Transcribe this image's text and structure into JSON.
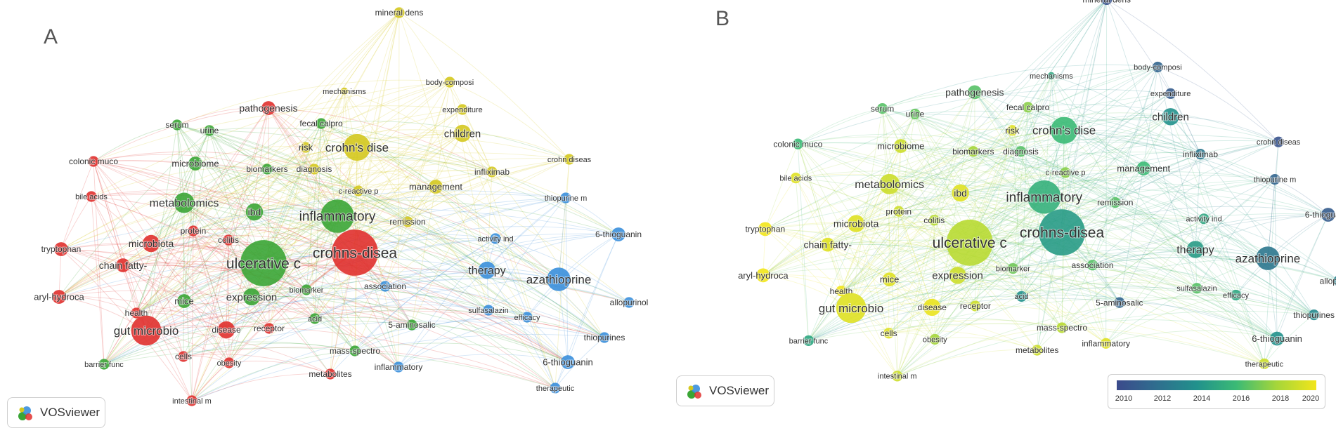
{
  "panels": [
    {
      "letter": "A",
      "logo_text": "VOSviewer"
    },
    {
      "letter": "B",
      "logo_text": "VOSviewer"
    }
  ],
  "legend": {
    "ticks": [
      "2010",
      "2012",
      "2014",
      "2016",
      "2018",
      "2020"
    ]
  },
  "cluster_colors": {
    "red": "#e0302e",
    "green": "#3aa535",
    "blue": "#3a8fdc",
    "yellow": "#d4c81e"
  },
  "nodes": [
    {
      "id": "mineral-dens",
      "label": "mineral dens",
      "cluster": "yellow",
      "weight": 2,
      "year": 2010.5,
      "fontsize": 12
    },
    {
      "id": "mechanisms",
      "label": "mechanisms",
      "cluster": "yellow",
      "weight": 1,
      "year": 2015.0,
      "fontsize": 11
    },
    {
      "id": "body-composi",
      "label": "body-composi",
      "cluster": "yellow",
      "weight": 2,
      "year": 2011.5,
      "fontsize": 11
    },
    {
      "id": "expenditure",
      "label": "expenditure",
      "cluster": "yellow",
      "weight": 2,
      "year": 2011.0,
      "fontsize": 11
    },
    {
      "id": "pathogenesis",
      "label": "pathogenesis",
      "cluster": "red",
      "weight": 3,
      "year": 2016.5,
      "fontsize": 14
    },
    {
      "id": "serum",
      "label": "serum",
      "cluster": "green",
      "weight": 2,
      "year": 2016.5,
      "fontsize": 12
    },
    {
      "id": "urine",
      "label": "urine",
      "cluster": "green",
      "weight": 2,
      "year": 2016.8,
      "fontsize": 12
    },
    {
      "id": "fecal-calpro",
      "label": "fecal calpro",
      "cluster": "green",
      "weight": 2,
      "year": 2017.5,
      "fontsize": 12
    },
    {
      "id": "crohns-dise",
      "label": "crohn's dise",
      "cluster": "yellow",
      "weight": 7,
      "year": 2016.0,
      "fontsize": 17
    },
    {
      "id": "children",
      "label": "children",
      "cluster": "yellow",
      "weight": 4,
      "year": 2014.0,
      "fontsize": 15
    },
    {
      "id": "risk",
      "label": "risk",
      "cluster": "yellow",
      "weight": 2,
      "year": 2019.5,
      "fontsize": 13
    },
    {
      "id": "colonic-muco",
      "label": "colonic muco",
      "cluster": "red",
      "weight": 2,
      "year": 2016.0,
      "fontsize": 12
    },
    {
      "id": "microbiome",
      "label": "microbiome",
      "cluster": "green",
      "weight": 3,
      "year": 2019.0,
      "fontsize": 13
    },
    {
      "id": "biomarkers",
      "label": "biomarkers",
      "cluster": "green",
      "weight": 2,
      "year": 2018.0,
      "fontsize": 12
    },
    {
      "id": "diagnosis",
      "label": "diagnosis",
      "cluster": "yellow",
      "weight": 2,
      "year": 2016.5,
      "fontsize": 12
    },
    {
      "id": "infliximab",
      "label": "infliximab",
      "cluster": "yellow",
      "weight": 2,
      "year": 2012.5,
      "fontsize": 12
    },
    {
      "id": "crohn-diseas",
      "label": "crohn diseas",
      "cluster": "yellow",
      "weight": 2,
      "year": 2010.5,
      "fontsize": 11
    },
    {
      "id": "bile-acids",
      "label": "bile acids",
      "cluster": "red",
      "weight": 2,
      "year": 2019.5,
      "fontsize": 11
    },
    {
      "id": "c-reactive-p",
      "label": "c-reactive p",
      "cluster": "yellow",
      "weight": 2,
      "year": 2017.5,
      "fontsize": 11
    },
    {
      "id": "management",
      "label": "management",
      "cluster": "yellow",
      "weight": 3,
      "year": 2016.0,
      "fontsize": 13
    },
    {
      "id": "metabolomics",
      "label": "metabolomics",
      "cluster": "green",
      "weight": 5,
      "year": 2019.0,
      "fontsize": 16
    },
    {
      "id": "ibd",
      "label": "ibd",
      "cluster": "green",
      "weight": 4,
      "year": 2019.5,
      "fontsize": 14
    },
    {
      "id": "inflammatory",
      "label": "inflammatory",
      "cluster": "green",
      "weight": 9,
      "year": 2015.5,
      "fontsize": 19
    },
    {
      "id": "thiopurine-m",
      "label": "thiopurine m",
      "cluster": "blue",
      "weight": 2,
      "year": 2011.5,
      "fontsize": 11
    },
    {
      "id": "remission",
      "label": "remission",
      "cluster": "yellow",
      "weight": 2,
      "year": 2016.5,
      "fontsize": 12
    },
    {
      "id": "protein",
      "label": "protein",
      "cluster": "red",
      "weight": 2,
      "year": 2019.0,
      "fontsize": 12
    },
    {
      "id": "6-thioguanin-1",
      "label": "6-thioguanin",
      "cluster": "blue",
      "weight": 3,
      "year": 2011.0,
      "fontsize": 12
    },
    {
      "id": "tryptophan",
      "label": "tryptophan",
      "cluster": "red",
      "weight": 3,
      "year": 2020.0,
      "fontsize": 12
    },
    {
      "id": "microbiota",
      "label": "microbiota",
      "cluster": "red",
      "weight": 4,
      "year": 2019.5,
      "fontsize": 14
    },
    {
      "id": "colitis",
      "label": "colitis",
      "cluster": "red",
      "weight": 2,
      "year": 2018.5,
      "fontsize": 12
    },
    {
      "id": "activity-ind",
      "label": "activity ind",
      "cluster": "blue",
      "weight": 2,
      "year": 2015.0,
      "fontsize": 11
    },
    {
      "id": "chain-fatty",
      "label": "chain fatty-",
      "cluster": "red",
      "weight": 3,
      "year": 2019.5,
      "fontsize": 14
    },
    {
      "id": "ulcerative-c",
      "label": "ulcerative c",
      "cluster": "green",
      "weight": 13,
      "year": 2018.5,
      "fontsize": 21
    },
    {
      "id": "crohns-disea",
      "label": "crohns-disea",
      "cluster": "red",
      "weight": 13,
      "year": 2014.5,
      "fontsize": 21
    },
    {
      "id": "therapy",
      "label": "therapy",
      "cluster": "blue",
      "weight": 4,
      "year": 2014.5,
      "fontsize": 16
    },
    {
      "id": "azathioprine",
      "label": "azathioprine",
      "cluster": "blue",
      "weight": 6,
      "year": 2012.5,
      "fontsize": 17
    },
    {
      "id": "aryl-hydroca",
      "label": "aryl-hydroca",
      "cluster": "red",
      "weight": 3,
      "year": 2020.0,
      "fontsize": 13
    },
    {
      "id": "expression",
      "label": "expression",
      "cluster": "green",
      "weight": 4,
      "year": 2019.0,
      "fontsize": 15
    },
    {
      "id": "mice",
      "label": "mice",
      "cluster": "green",
      "weight": 3,
      "year": 2019.5,
      "fontsize": 13
    },
    {
      "id": "biomarker",
      "label": "biomarker",
      "cluster": "green",
      "weight": 2,
      "year": 2017.0,
      "fontsize": 11
    },
    {
      "id": "association",
      "label": "association",
      "cluster": "blue",
      "weight": 2,
      "year": 2016.5,
      "fontsize": 12
    },
    {
      "id": "allopurinol",
      "label": "allopurinol",
      "cluster": "blue",
      "weight": 2,
      "year": 2013.0,
      "fontsize": 12
    },
    {
      "id": "health",
      "label": "health",
      "cluster": "red",
      "weight": 2,
      "year": 2020.0,
      "fontsize": 12
    },
    {
      "id": "sulfasalazin",
      "label": "sulfasalazin",
      "cluster": "blue",
      "weight": 2,
      "year": 2016.5,
      "fontsize": 11
    },
    {
      "id": "efficacy",
      "label": "efficacy",
      "cluster": "blue",
      "weight": 2,
      "year": 2015.0,
      "fontsize": 11
    },
    {
      "id": "gut-microbio",
      "label": "gut microbio",
      "cluster": "red",
      "weight": 8,
      "year": 2019.5,
      "fontsize": 17
    },
    {
      "id": "disease",
      "label": "disease",
      "cluster": "red",
      "weight": 4,
      "year": 2019.8,
      "fontsize": 12
    },
    {
      "id": "receptor",
      "label": "receptor",
      "cluster": "red",
      "weight": 2,
      "year": 2019.0,
      "fontsize": 12
    },
    {
      "id": "acid",
      "label": "acid",
      "cluster": "green",
      "weight": 2,
      "year": 2014.0,
      "fontsize": 11
    },
    {
      "id": "5-aminosalic",
      "label": "5-aminosalic",
      "cluster": "green",
      "weight": 2,
      "year": 2011.5,
      "fontsize": 12
    },
    {
      "id": "thiopurines",
      "label": "thiopurines",
      "cluster": "blue",
      "weight": 2,
      "year": 2013.5,
      "fontsize": 12
    },
    {
      "id": "mass-spectro",
      "label": "mass-spectro",
      "cluster": "green",
      "weight": 2,
      "year": 2018.5,
      "fontsize": 12
    },
    {
      "id": "cells",
      "label": "cells",
      "cluster": "red",
      "weight": 2,
      "year": 2019.5,
      "fontsize": 12
    },
    {
      "id": "barrier-func",
      "label": "barrier func",
      "cluster": "green",
      "weight": 2,
      "year": 2015.0,
      "fontsize": 11
    },
    {
      "id": "obesity",
      "label": "obesity",
      "cluster": "red",
      "weight": 2,
      "year": 2018.0,
      "fontsize": 11
    },
    {
      "id": "6-thioguanin-2",
      "label": "6-thioguanin",
      "cluster": "blue",
      "weight": 3,
      "year": 2014.0,
      "fontsize": 13
    },
    {
      "id": "metabolites",
      "label": "metabolites",
      "cluster": "red",
      "weight": 2,
      "year": 2019.0,
      "fontsize": 12
    },
    {
      "id": "inflammatory-2",
      "label": "inflammatory",
      "cluster": "blue",
      "weight": 2,
      "year": 2019.5,
      "fontsize": 12
    },
    {
      "id": "intestinal-m",
      "label": "intestinal m",
      "cluster": "red",
      "weight": 2,
      "year": 2019.0,
      "fontsize": 11
    },
    {
      "id": "therapeutic",
      "label": "therapeutic",
      "cluster": "blue",
      "weight": 2,
      "year": 2019.0,
      "fontsize": 11
    }
  ]
}
